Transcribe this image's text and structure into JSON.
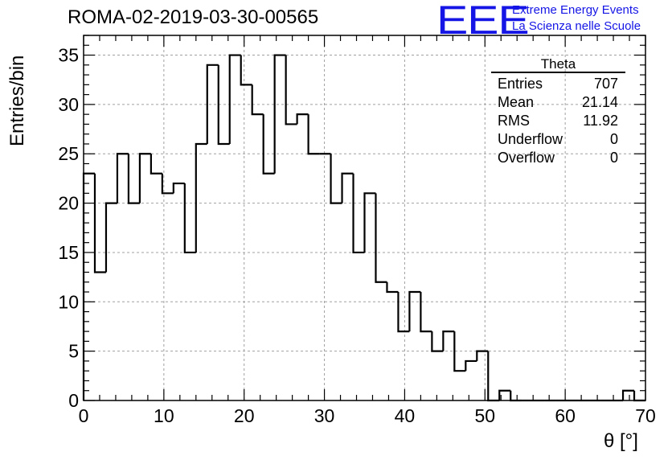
{
  "header": {
    "title": "ROMA-02-2019-03-30-00565",
    "logo_text": "EEE",
    "brand_line1": "Extreme Energy Events",
    "brand_line2": "La Scienza nelle Scuole"
  },
  "stats": {
    "title": "Theta",
    "rows": [
      {
        "label": "Entries",
        "value": "707"
      },
      {
        "label": "Mean",
        "value": "21.14"
      },
      {
        "label": "RMS",
        "value": "11.92"
      },
      {
        "label": "Underflow",
        "value": "0"
      },
      {
        "label": "Overflow",
        "value": "0"
      }
    ]
  },
  "colors": {
    "brand": "#1515e6",
    "line": "#000000",
    "grid": "#a0a0a0"
  },
  "chart_data": {
    "type": "bar",
    "histogram": true,
    "bin_width": 1.4,
    "x_start": 0,
    "values": [
      23,
      13,
      20,
      25,
      20,
      25,
      23,
      21,
      22,
      15,
      26,
      34,
      26,
      35,
      32,
      29,
      23,
      35,
      28,
      29,
      25,
      25,
      20,
      23,
      15,
      21,
      12,
      11,
      7,
      11,
      7,
      5,
      7,
      3,
      4,
      5,
      0,
      1,
      0,
      0,
      0,
      0,
      0,
      0,
      0,
      0,
      0,
      0,
      1,
      0
    ],
    "xlabel": "θ [°]",
    "ylabel": "Entries/bin",
    "xlim": [
      0,
      70
    ],
    "ylim": [
      0,
      37
    ],
    "xticks": [
      "0",
      "10",
      "20",
      "30",
      "40",
      "50",
      "60",
      "70"
    ],
    "yticks": [
      "0",
      "5",
      "10",
      "15",
      "20",
      "25",
      "30",
      "35"
    ],
    "grid": true
  }
}
